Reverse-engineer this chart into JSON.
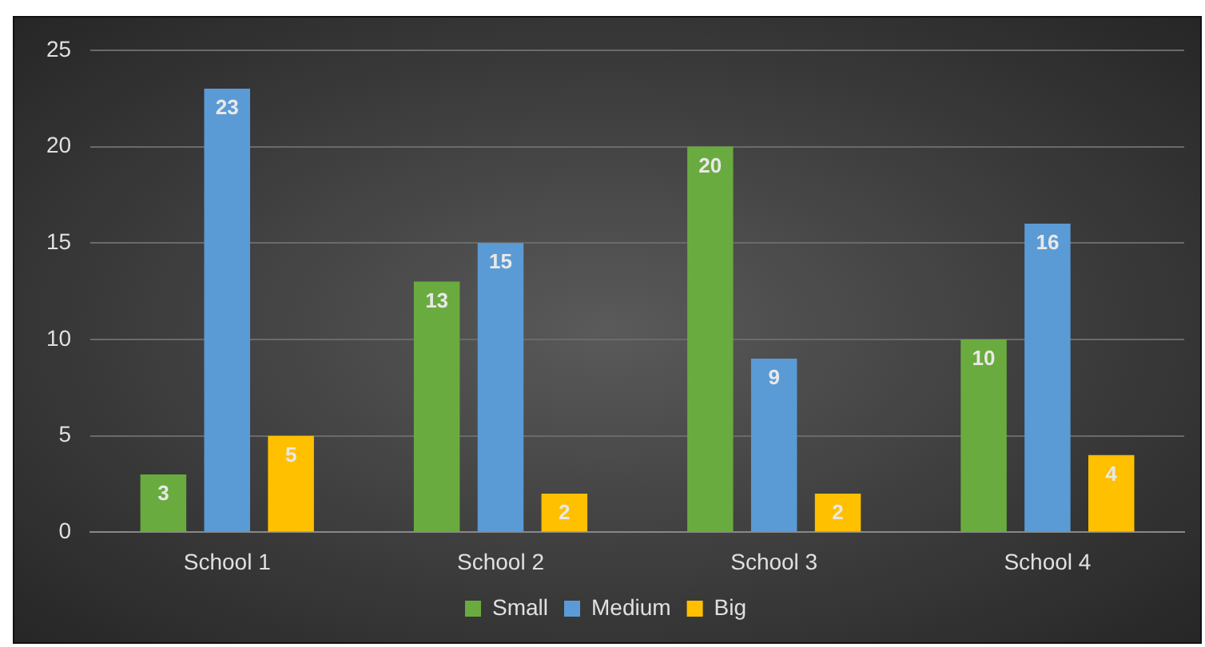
{
  "chart_data": {
    "type": "bar",
    "categories": [
      "School 1",
      "School 2",
      "School 3",
      "School 4"
    ],
    "series": [
      {
        "name": "Small",
        "color": "#6aab3f",
        "values": [
          3,
          13,
          20,
          10
        ]
      },
      {
        "name": "Medium",
        "color": "#5b9bd5",
        "values": [
          23,
          15,
          9,
          16
        ]
      },
      {
        "name": "Big",
        "color": "#ffc000",
        "values": [
          5,
          2,
          2,
          4
        ]
      }
    ],
    "ylim": [
      0,
      25
    ],
    "yticks": [
      0,
      5,
      10,
      15,
      20,
      25
    ],
    "grid": "y",
    "legend": "bottom",
    "data_labels": true
  }
}
